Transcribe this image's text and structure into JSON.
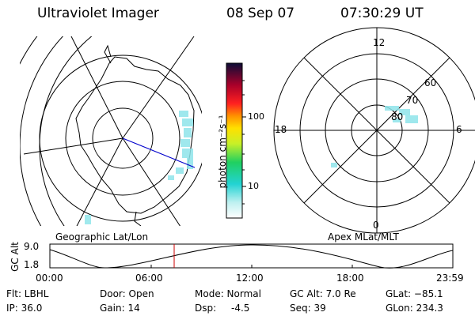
{
  "header": {
    "title": "Ultraviolet Imager",
    "date": "08 Sep 07",
    "time": "07:30:29 UT"
  },
  "colorbar": {
    "unit_label": "photon cm⁻²s⁻¹",
    "ticks": [
      "100",
      "10"
    ]
  },
  "left_panel": {
    "caption": "Geographic Lat/Lon"
  },
  "right_panel": {
    "caption": "Apex MLat/MLT",
    "mlt_labels": {
      "top": "12",
      "left": "18",
      "right": "6",
      "bottom": "0"
    },
    "lat_labels": [
      "60",
      "70",
      "80"
    ]
  },
  "altitude_plot": {
    "ylabel": "GC Alt",
    "yticks": [
      "9.0",
      "1.8"
    ],
    "xticks": [
      "00:00",
      "06:00",
      "12:00",
      "18:00",
      "23:59"
    ]
  },
  "footer": {
    "filter": "Flt: LBHL",
    "ip": "IP: 36.0",
    "door": "Door: Open",
    "gain": "Gain: 14",
    "mode": "Mode: Normal",
    "dsp": "Dsp:",
    "dsp_value": "-4.5",
    "gc_alt": "GC Alt: 7.0 Re",
    "seq": "Seq: 39",
    "glat": "GLat: −85.1",
    "glon": "GLon: 234.3"
  }
}
